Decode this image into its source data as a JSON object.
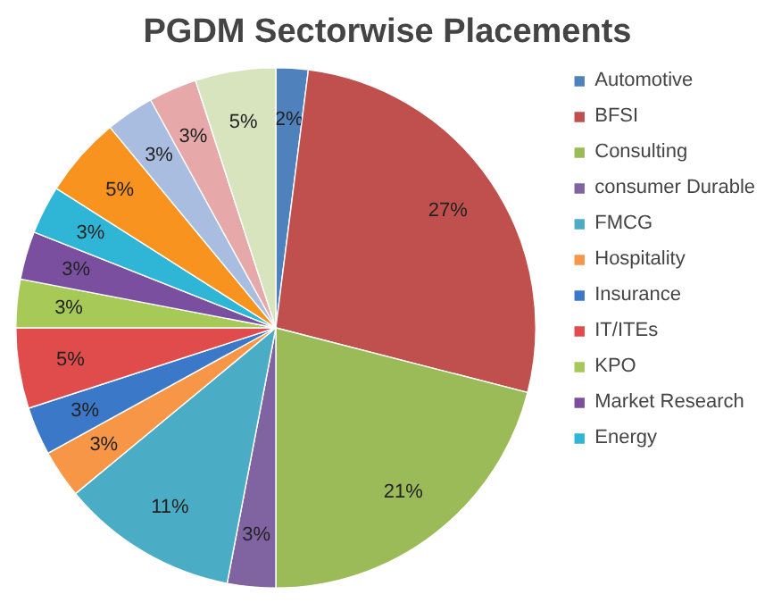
{
  "chart_data": {
    "type": "pie",
    "title": "PGDM Sectorwise Placements",
    "categories": [
      "Automotive",
      "BFSI",
      "Consulting",
      "consumer Durable",
      "FMCG",
      "Hospitality",
      "Insurance",
      "IT/ITEs",
      "KPO",
      "Market Research",
      "Energy",
      null,
      null,
      null,
      null
    ],
    "values": [
      2,
      27,
      21,
      3,
      11,
      3,
      3,
      5,
      3,
      3,
      3,
      5,
      3,
      3,
      5
    ],
    "colors": [
      "#4f81bd",
      "#c0504d",
      "#9bbb59",
      "#8064a2",
      "#4bacc6",
      "#f79646",
      "#3c78c8",
      "#e04c4c",
      "#a6c957",
      "#7a4fa0",
      "#2fb5d5",
      "#f7931e",
      "#a9bde0",
      "#e6a8a8",
      "#d7e4bd"
    ],
    "value_labels": [
      "2%",
      "27%",
      "21%",
      "3%",
      "11%",
      "3%",
      "3%",
      "5%",
      "3%",
      "3%",
      "3%",
      "5%",
      "3%",
      "3%",
      "5%"
    ],
    "legend": "right"
  }
}
